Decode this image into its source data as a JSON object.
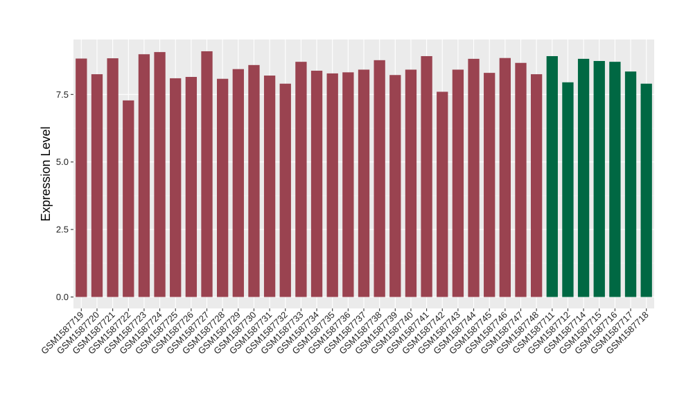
{
  "chart_data": {
    "type": "bar",
    "title": "",
    "xlabel": "",
    "ylabel": "Expression Level",
    "ylim": [
      0,
      9.3
    ],
    "yticks": [
      "0.0",
      "2.5",
      "5.0",
      "7.5"
    ],
    "ytick_values": [
      0,
      2.5,
      5.0,
      7.5
    ],
    "grid": true,
    "legend": "none",
    "colors": {
      "group1": "#9a4350",
      "group2": "#006843",
      "panel": "#ebebeb"
    },
    "categories": [
      "GSM1587719",
      "GSM1587720",
      "GSM1587721",
      "GSM1587722",
      "GSM1587723",
      "GSM1587724",
      "GSM1587725",
      "GSM1587726",
      "GSM1587727",
      "GSM1587728",
      "GSM1587729",
      "GSM1587730",
      "GSM1587731",
      "GSM1587732",
      "GSM1587733",
      "GSM1587734",
      "GSM1587735",
      "GSM1587736",
      "GSM1587737",
      "GSM1587738",
      "GSM1587739",
      "GSM1587740",
      "GSM1587741",
      "GSM1587742",
      "GSM1587743",
      "GSM1587744",
      "GSM1587745",
      "GSM1587746",
      "GSM1587747",
      "GSM1587748",
      "GSM1587711",
      "GSM1587712",
      "GSM1587714",
      "GSM1587715",
      "GSM1587716",
      "GSM1587717",
      "GSM1587718"
    ],
    "values": [
      8.83,
      8.25,
      8.84,
      7.28,
      8.99,
      9.07,
      8.1,
      8.15,
      9.1,
      8.08,
      8.44,
      8.59,
      8.2,
      7.9,
      8.71,
      8.38,
      8.28,
      8.32,
      8.42,
      8.77,
      8.22,
      8.42,
      8.92,
      7.6,
      8.42,
      8.82,
      8.3,
      8.85,
      8.67,
      8.25,
      8.92,
      7.95,
      8.82,
      8.74,
      8.71,
      8.35,
      7.9
    ],
    "groups": [
      "group1",
      "group1",
      "group1",
      "group1",
      "group1",
      "group1",
      "group1",
      "group1",
      "group1",
      "group1",
      "group1",
      "group1",
      "group1",
      "group1",
      "group1",
      "group1",
      "group1",
      "group1",
      "group1",
      "group1",
      "group1",
      "group1",
      "group1",
      "group1",
      "group1",
      "group1",
      "group1",
      "group1",
      "group1",
      "group1",
      "group2",
      "group2",
      "group2",
      "group2",
      "group2",
      "group2",
      "group2"
    ]
  }
}
